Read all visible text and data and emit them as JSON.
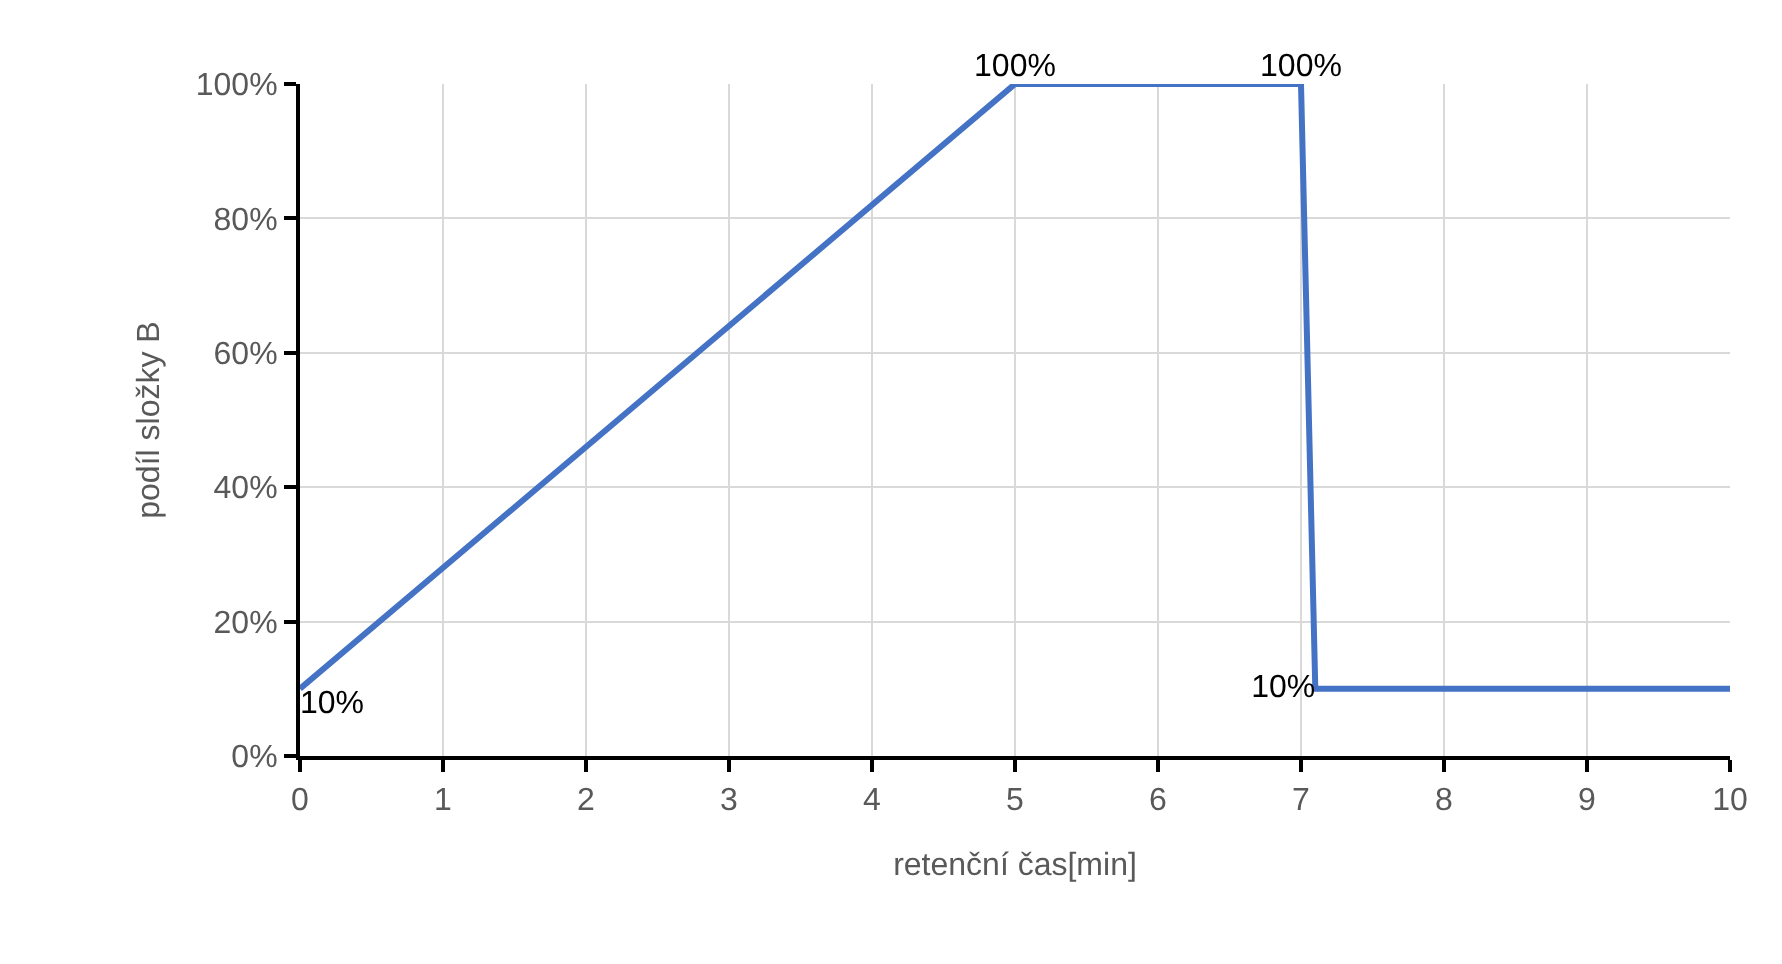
{
  "chart_data": {
    "type": "line",
    "xlabel": "retenční čas[min]",
    "ylabel": "podíl složky B",
    "x": [
      0,
      5,
      7,
      7.1,
      10
    ],
    "series": [
      {
        "color": "#4472c4",
        "values": [
          10,
          100,
          100,
          10,
          10
        ],
        "value_labels": [
          "10%",
          "100%",
          "100%",
          "10%",
          null
        ]
      }
    ],
    "xlim": [
      0,
      10
    ],
    "xticks": [
      0,
      1,
      2,
      3,
      4,
      5,
      6,
      7,
      8,
      9,
      10
    ],
    "ylim": [
      0,
      100
    ],
    "yticks": [
      {
        "value": 0,
        "label": "0%"
      },
      {
        "value": 20,
        "label": "20%"
      },
      {
        "value": 40,
        "label": "40%"
      },
      {
        "value": 60,
        "label": "60%"
      },
      {
        "value": 80,
        "label": "80%"
      },
      {
        "value": 100,
        "label": "100%"
      }
    ],
    "grid": true,
    "legend": false,
    "marker": "none",
    "line_style": "solid"
  }
}
